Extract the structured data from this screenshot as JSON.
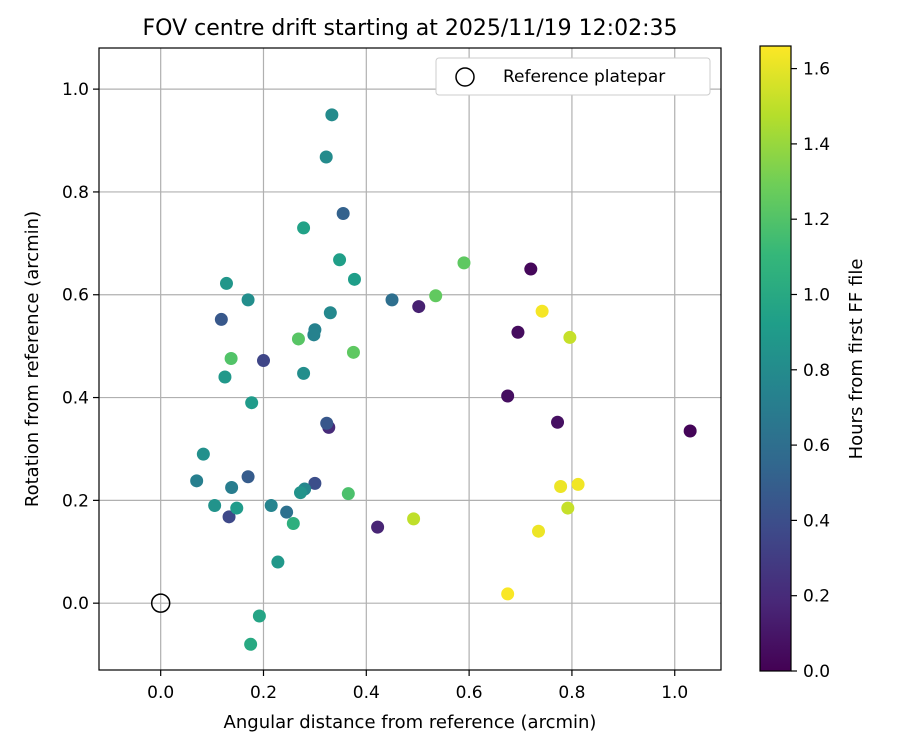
{
  "chart_data": {
    "type": "scatter",
    "title": "FOV centre drift starting at 2025/11/19 12:02:35",
    "xlabel": "Angular distance from reference (arcmin)",
    "ylabel": "Rotation from reference (arcmin)",
    "xlim": [
      -0.12,
      1.09
    ],
    "ylim": [
      -0.13,
      1.08
    ],
    "xticks": [
      0.0,
      0.2,
      0.4,
      0.6,
      0.8,
      1.0
    ],
    "yticks": [
      0.0,
      0.2,
      0.4,
      0.6,
      0.8,
      1.0
    ],
    "grid": true,
    "legend": {
      "position": "top-right",
      "entries": [
        "Reference platepar"
      ]
    },
    "reference_point": {
      "x": 0.0,
      "y": 0.0
    },
    "colorbar": {
      "label": "Hours from first FF file",
      "range": [
        0.0,
        1.66
      ],
      "ticks": [
        0.0,
        0.2,
        0.4,
        0.6,
        0.8,
        1.0,
        1.2,
        1.4,
        1.6
      ],
      "colormap": [
        "#440154",
        "#482878",
        "#3e4989",
        "#31688e",
        "#26828e",
        "#1f9e89",
        "#35b779",
        "#6ece58",
        "#b5de2b",
        "#fde725"
      ]
    },
    "points": [
      {
        "x": 1.03,
        "y": 0.335,
        "t": 0.02
      },
      {
        "x": 0.72,
        "y": 0.65,
        "t": 0.03
      },
      {
        "x": 0.695,
        "y": 0.527,
        "t": 0.05
      },
      {
        "x": 0.675,
        "y": 0.403,
        "t": 0.06
      },
      {
        "x": 0.772,
        "y": 0.352,
        "t": 0.07
      },
      {
        "x": 0.502,
        "y": 0.577,
        "t": 0.15
      },
      {
        "x": 0.422,
        "y": 0.148,
        "t": 0.17
      },
      {
        "x": 0.327,
        "y": 0.342,
        "t": 0.2
      },
      {
        "x": 0.2,
        "y": 0.472,
        "t": 0.35
      },
      {
        "x": 0.133,
        "y": 0.168,
        "t": 0.37
      },
      {
        "x": 0.3,
        "y": 0.233,
        "t": 0.4
      },
      {
        "x": 0.323,
        "y": 0.35,
        "t": 0.45
      },
      {
        "x": 0.118,
        "y": 0.552,
        "t": 0.46
      },
      {
        "x": 0.17,
        "y": 0.246,
        "t": 0.48
      },
      {
        "x": 0.355,
        "y": 0.758,
        "t": 0.52
      },
      {
        "x": 0.45,
        "y": 0.59,
        "t": 0.6
      },
      {
        "x": 0.245,
        "y": 0.177,
        "t": 0.62
      },
      {
        "x": 0.138,
        "y": 0.225,
        "t": 0.7
      },
      {
        "x": 0.07,
        "y": 0.238,
        "t": 0.72
      },
      {
        "x": 0.3,
        "y": 0.532,
        "t": 0.73
      },
      {
        "x": 0.298,
        "y": 0.522,
        "t": 0.74
      },
      {
        "x": 0.215,
        "y": 0.19,
        "t": 0.75
      },
      {
        "x": 0.28,
        "y": 0.222,
        "t": 0.77
      },
      {
        "x": 0.33,
        "y": 0.565,
        "t": 0.78
      },
      {
        "x": 0.322,
        "y": 0.868,
        "t": 0.8
      },
      {
        "x": 0.333,
        "y": 0.95,
        "t": 0.8
      },
      {
        "x": 0.17,
        "y": 0.59,
        "t": 0.82
      },
      {
        "x": 0.278,
        "y": 0.447,
        "t": 0.82
      },
      {
        "x": 0.083,
        "y": 0.29,
        "t": 0.83
      },
      {
        "x": 0.105,
        "y": 0.19,
        "t": 0.85
      },
      {
        "x": 0.272,
        "y": 0.215,
        "t": 0.85
      },
      {
        "x": 0.128,
        "y": 0.622,
        "t": 0.87
      },
      {
        "x": 0.125,
        "y": 0.44,
        "t": 0.88
      },
      {
        "x": 0.228,
        "y": 0.08,
        "t": 0.88
      },
      {
        "x": 0.177,
        "y": 0.39,
        "t": 0.9
      },
      {
        "x": 0.148,
        "y": 0.185,
        "t": 0.9
      },
      {
        "x": 0.377,
        "y": 0.63,
        "t": 0.92
      },
      {
        "x": 0.348,
        "y": 0.668,
        "t": 0.93
      },
      {
        "x": 0.278,
        "y": 0.73,
        "t": 0.95
      },
      {
        "x": 0.192,
        "y": -0.025,
        "t": 0.97
      },
      {
        "x": 0.175,
        "y": -0.08,
        "t": 1.0
      },
      {
        "x": 0.258,
        "y": 0.155,
        "t": 1.05
      },
      {
        "x": 0.365,
        "y": 0.213,
        "t": 1.18
      },
      {
        "x": 0.137,
        "y": 0.476,
        "t": 1.2
      },
      {
        "x": 0.268,
        "y": 0.514,
        "t": 1.22
      },
      {
        "x": 0.375,
        "y": 0.488,
        "t": 1.24
      },
      {
        "x": 0.59,
        "y": 0.662,
        "t": 1.24
      },
      {
        "x": 0.535,
        "y": 0.598,
        "t": 1.25
      },
      {
        "x": 0.492,
        "y": 0.164,
        "t": 1.5
      },
      {
        "x": 0.796,
        "y": 0.517,
        "t": 1.52
      },
      {
        "x": 0.792,
        "y": 0.185,
        "t": 1.52
      },
      {
        "x": 0.735,
        "y": 0.14,
        "t": 1.62
      },
      {
        "x": 0.778,
        "y": 0.227,
        "t": 1.62
      },
      {
        "x": 0.812,
        "y": 0.231,
        "t": 1.63
      },
      {
        "x": 0.742,
        "y": 0.568,
        "t": 1.64
      },
      {
        "x": 0.675,
        "y": 0.018,
        "t": 1.65
      }
    ]
  }
}
